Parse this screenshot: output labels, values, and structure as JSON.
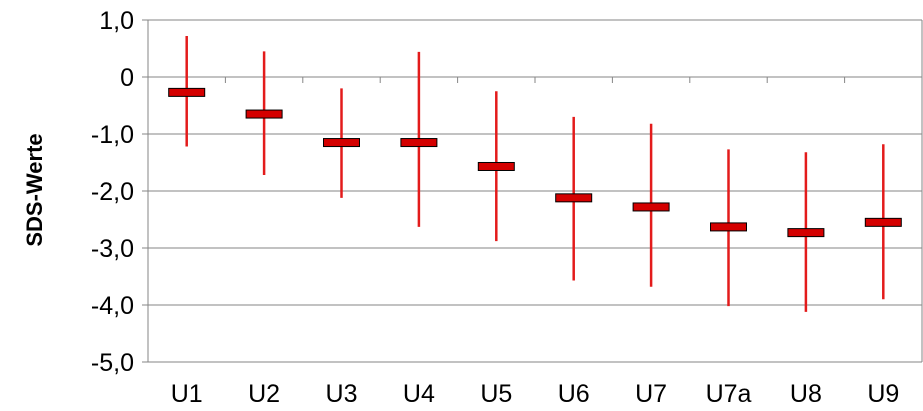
{
  "chart_data": {
    "type": "error-bar",
    "title": "",
    "xlabel": "",
    "ylabel": "SDS-Werte",
    "ylim": [
      -5.0,
      1.0
    ],
    "yticks": [
      1.0,
      0,
      -1.0,
      -2.0,
      -3.0,
      -4.0,
      -5.0
    ],
    "ytick_labels": [
      "1,0",
      "0",
      "-1,0",
      "-2,0",
      "-3,0",
      "-4,0",
      "-5,0"
    ],
    "grid": true,
    "legend": "none",
    "categories": [
      "U1",
      "U2",
      "U3",
      "U4",
      "U5",
      "U6",
      "U7",
      "U7a",
      "U8",
      "U9"
    ],
    "series": [
      {
        "mean": [
          -0.27,
          -0.65,
          -1.15,
          -1.15,
          -1.57,
          -2.12,
          -2.28,
          -2.63,
          -2.73,
          -2.55
        ],
        "max": [
          0.72,
          0.45,
          -0.2,
          0.44,
          -0.25,
          -0.7,
          -0.82,
          -1.27,
          -1.32,
          -1.18
        ],
        "min": [
          -1.22,
          -1.72,
          -2.12,
          -2.63,
          -2.88,
          -3.57,
          -3.68,
          -4.02,
          -4.12,
          -3.9
        ],
        "color": "#e31b1b",
        "marker_color": "#d40000"
      }
    ]
  }
}
